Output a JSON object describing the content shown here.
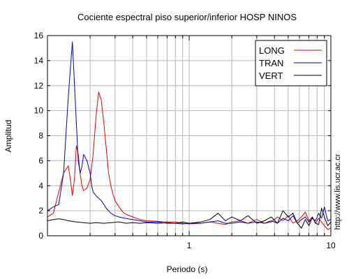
{
  "chart_data": {
    "type": "line",
    "title": "Cociente espectral piso superior/inferior  HOSP NINOS",
    "xlabel": "Periodo (s)",
    "ylabel": "Amplitud",
    "x_scale": "log",
    "xlim": [
      0.1,
      10
    ],
    "ylim": [
      0,
      16
    ],
    "grid": true,
    "legend_position": "top-right",
    "x_ticks": [
      {
        "value": 1,
        "label": "1"
      },
      {
        "value": 10,
        "label": "10"
      }
    ],
    "y_ticks": [
      {
        "value": 0,
        "label": "0"
      },
      {
        "value": 2,
        "label": "2"
      },
      {
        "value": 4,
        "label": "4"
      },
      {
        "value": 6,
        "label": "6"
      },
      {
        "value": 8,
        "label": "8"
      },
      {
        "value": 10,
        "label": "10"
      },
      {
        "value": 12,
        "label": "12"
      },
      {
        "value": 14,
        "label": "14"
      },
      {
        "value": 16,
        "label": "16"
      }
    ],
    "series": [
      {
        "name": "LONG",
        "color": "#e00000",
        "x": [
          0.1,
          0.11,
          0.12,
          0.13,
          0.14,
          0.145,
          0.15,
          0.155,
          0.16,
          0.165,
          0.17,
          0.175,
          0.18,
          0.19,
          0.2,
          0.21,
          0.22,
          0.23,
          0.24,
          0.25,
          0.255,
          0.26,
          0.265,
          0.27,
          0.28,
          0.29,
          0.3,
          0.32,
          0.34,
          0.36,
          0.4,
          0.45,
          0.5,
          0.6,
          0.7,
          0.8,
          0.9,
          1.0,
          1.2,
          1.4,
          1.6,
          1.8,
          2.0,
          2.3,
          2.6,
          3.0,
          3.4,
          3.8,
          4.2,
          4.6,
          5.0,
          5.4,
          5.8,
          6.2,
          6.6,
          7.0,
          7.4,
          7.8,
          8.2,
          8.6,
          9.0,
          9.5,
          10.0
        ],
        "y": [
          1.5,
          1.8,
          3.5,
          5.0,
          5.6,
          4.5,
          3.2,
          4.5,
          7.2,
          6.5,
          5.0,
          4.0,
          3.6,
          3.8,
          4.5,
          6.5,
          9.5,
          11.5,
          10.8,
          9.0,
          8.0,
          7.0,
          6.0,
          5.0,
          4.0,
          3.3,
          2.8,
          2.3,
          1.9,
          1.7,
          1.5,
          1.3,
          1.2,
          1.15,
          1.1,
          1.1,
          1.0,
          0.95,
          1.0,
          1.1,
          1.0,
          0.9,
          1.1,
          1.2,
          1.0,
          1.3,
          1.0,
          1.1,
          1.5,
          1.2,
          1.6,
          1.0,
          1.2,
          1.5,
          1.9,
          1.2,
          1.5,
          1.0,
          1.4,
          1.1,
          0.8,
          0.5,
          0.6
        ]
      },
      {
        "name": "TRAN",
        "color": "#0000c0",
        "x": [
          0.1,
          0.11,
          0.12,
          0.13,
          0.14,
          0.15,
          0.16,
          0.165,
          0.17,
          0.175,
          0.18,
          0.19,
          0.2,
          0.205,
          0.21,
          0.22,
          0.23,
          0.24,
          0.25,
          0.26,
          0.27,
          0.28,
          0.3,
          0.32,
          0.35,
          0.4,
          0.45,
          0.5,
          0.6,
          0.7,
          0.8,
          0.9,
          1.0,
          1.2,
          1.4,
          1.6,
          1.8,
          2.0,
          2.3,
          2.6,
          3.0,
          3.4,
          3.8,
          4.2,
          4.6,
          5.0,
          5.4,
          5.8,
          6.2,
          6.6,
          7.0,
          7.4,
          7.8,
          8.2,
          8.6,
          9.0,
          9.5,
          10.0
        ],
        "y": [
          2.0,
          2.3,
          2.5,
          5.0,
          11.0,
          15.5,
          9.0,
          6.0,
          5.0,
          5.5,
          6.5,
          6.0,
          5.0,
          4.0,
          3.5,
          3.2,
          3.0,
          2.8,
          2.5,
          2.2,
          2.0,
          1.8,
          1.6,
          1.5,
          1.4,
          1.3,
          1.2,
          1.1,
          1.1,
          1.0,
          1.0,
          0.95,
          1.0,
          1.0,
          1.1,
          1.2,
          1.0,
          1.0,
          1.1,
          1.0,
          1.1,
          1.0,
          1.2,
          1.0,
          1.4,
          1.2,
          1.6,
          1.0,
          1.3,
          1.5,
          1.1,
          1.4,
          1.2,
          1.8,
          1.4,
          2.3,
          1.2,
          1.3
        ]
      },
      {
        "name": "VERT",
        "color": "#000000",
        "x": [
          0.1,
          0.11,
          0.12,
          0.13,
          0.14,
          0.15,
          0.16,
          0.18,
          0.2,
          0.22,
          0.25,
          0.28,
          0.32,
          0.36,
          0.4,
          0.45,
          0.5,
          0.6,
          0.7,
          0.8,
          0.9,
          1.0,
          1.2,
          1.4,
          1.6,
          1.8,
          2.0,
          2.3,
          2.6,
          3.0,
          3.4,
          3.8,
          4.2,
          4.6,
          5.0,
          5.4,
          5.8,
          6.2,
          6.6,
          7.0,
          7.4,
          7.8,
          8.2,
          8.6,
          9.0,
          9.5,
          10.0
        ],
        "y": [
          1.2,
          1.3,
          1.35,
          1.3,
          1.2,
          1.15,
          1.1,
          1.05,
          1.0,
          1.05,
          1.0,
          1.05,
          1.1,
          1.0,
          1.05,
          1.0,
          1.05,
          1.0,
          1.05,
          1.0,
          1.1,
          1.0,
          1.1,
          1.3,
          1.8,
          1.2,
          1.5,
          1.2,
          1.6,
          1.0,
          1.2,
          1.5,
          1.0,
          2.0,
          1.5,
          1.8,
          1.0,
          0.6,
          1.3,
          0.8,
          1.5,
          1.0,
          0.9,
          2.2,
          1.5,
          0.8,
          1.1
        ]
      }
    ]
  },
  "watermark": "http://www.lis.ucr.ac.cr"
}
